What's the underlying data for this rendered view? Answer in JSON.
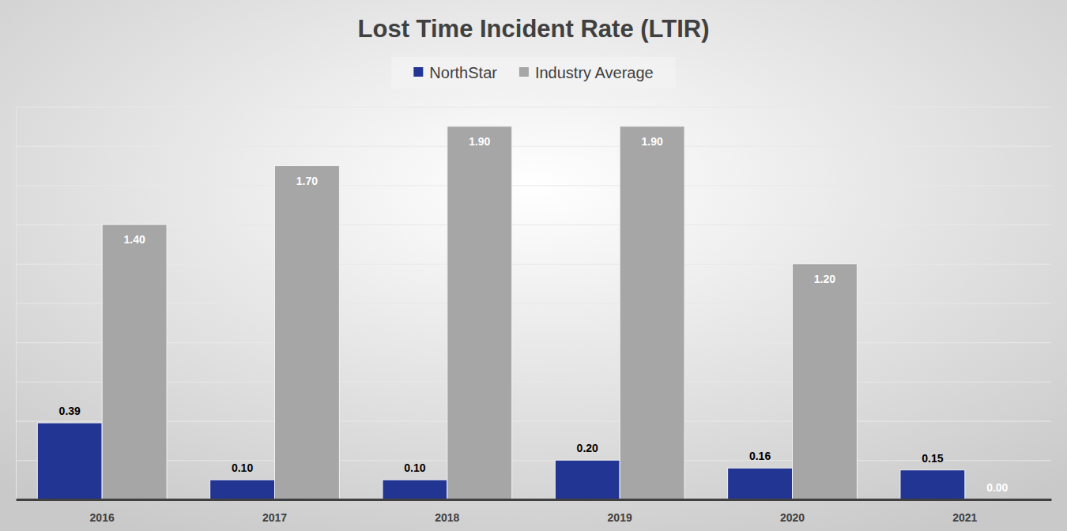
{
  "chart_data": {
    "type": "bar",
    "title": "Lost Time Incident Rate (LTIR)",
    "categories": [
      "2016",
      "2017",
      "2018",
      "2019",
      "2020",
      "2021"
    ],
    "series": [
      {
        "name": "NorthStar",
        "color": "#233593",
        "values": [
          0.39,
          0.1,
          0.1,
          0.2,
          0.16,
          0.15
        ],
        "value_labels": [
          "0.39",
          "0.10",
          "0.10",
          "0.20",
          "0.16",
          "0.15"
        ]
      },
      {
        "name": "Industry Average",
        "color": "#a6a6a6",
        "values": [
          1.4,
          1.7,
          1.9,
          1.9,
          1.2,
          0
        ],
        "value_labels": [
          "1.40",
          "1.70",
          "1.90",
          "1.90",
          "1.20",
          "0.00"
        ]
      }
    ],
    "ylim": [
      0,
      2
    ],
    "yticks": [
      0,
      0.2,
      0.4,
      0.6,
      0.8,
      1,
      1.2,
      1.4,
      1.6,
      1.8,
      2
    ],
    "grid": true,
    "legend": "top",
    "data_labels": true,
    "tick_labels": "x"
  }
}
